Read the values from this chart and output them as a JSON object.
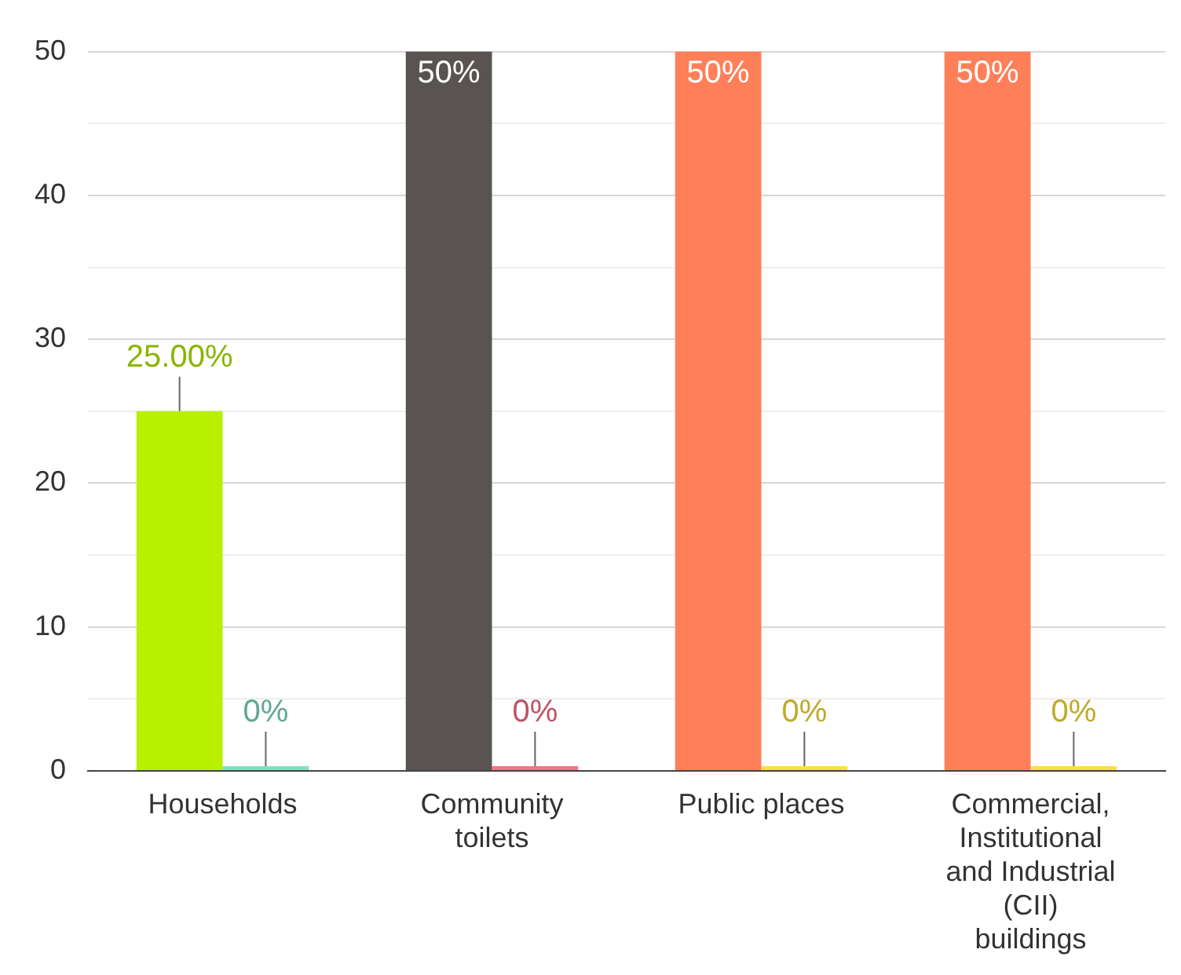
{
  "chart_data": {
    "type": "bar",
    "categories": [
      "Households",
      "Community toilets",
      "Public places",
      "Commercial, Institutional and Industrial (CII) buildings"
    ],
    "series": [
      {
        "colors": [
          "#b8f000",
          "#595352",
          "#ff7f59",
          "#ff7f59"
        ],
        "values": [
          25,
          50,
          50,
          50
        ],
        "value_labels": [
          "25.00%",
          "50%",
          "50%",
          "50%"
        ]
      },
      {
        "colors": [
          "#7fe0c4",
          "#ff6f86",
          "#ffe23a",
          "#ffe23a"
        ],
        "values": [
          0,
          0,
          0,
          0
        ],
        "value_labels": [
          "0%",
          "0%",
          "0%",
          "0%"
        ]
      }
    ],
    "ylim": [
      0,
      50
    ],
    "yticks": [
      0,
      {
        "value": 5,
        "label": null
      },
      10,
      {
        "value": 15,
        "label": null
      },
      20,
      {
        "value": 25,
        "label": null
      },
      30,
      {
        "value": 35,
        "label": null
      },
      40,
      {
        "value": 45,
        "label": null
      },
      50
    ],
    "grid": "y",
    "legend": false
  }
}
